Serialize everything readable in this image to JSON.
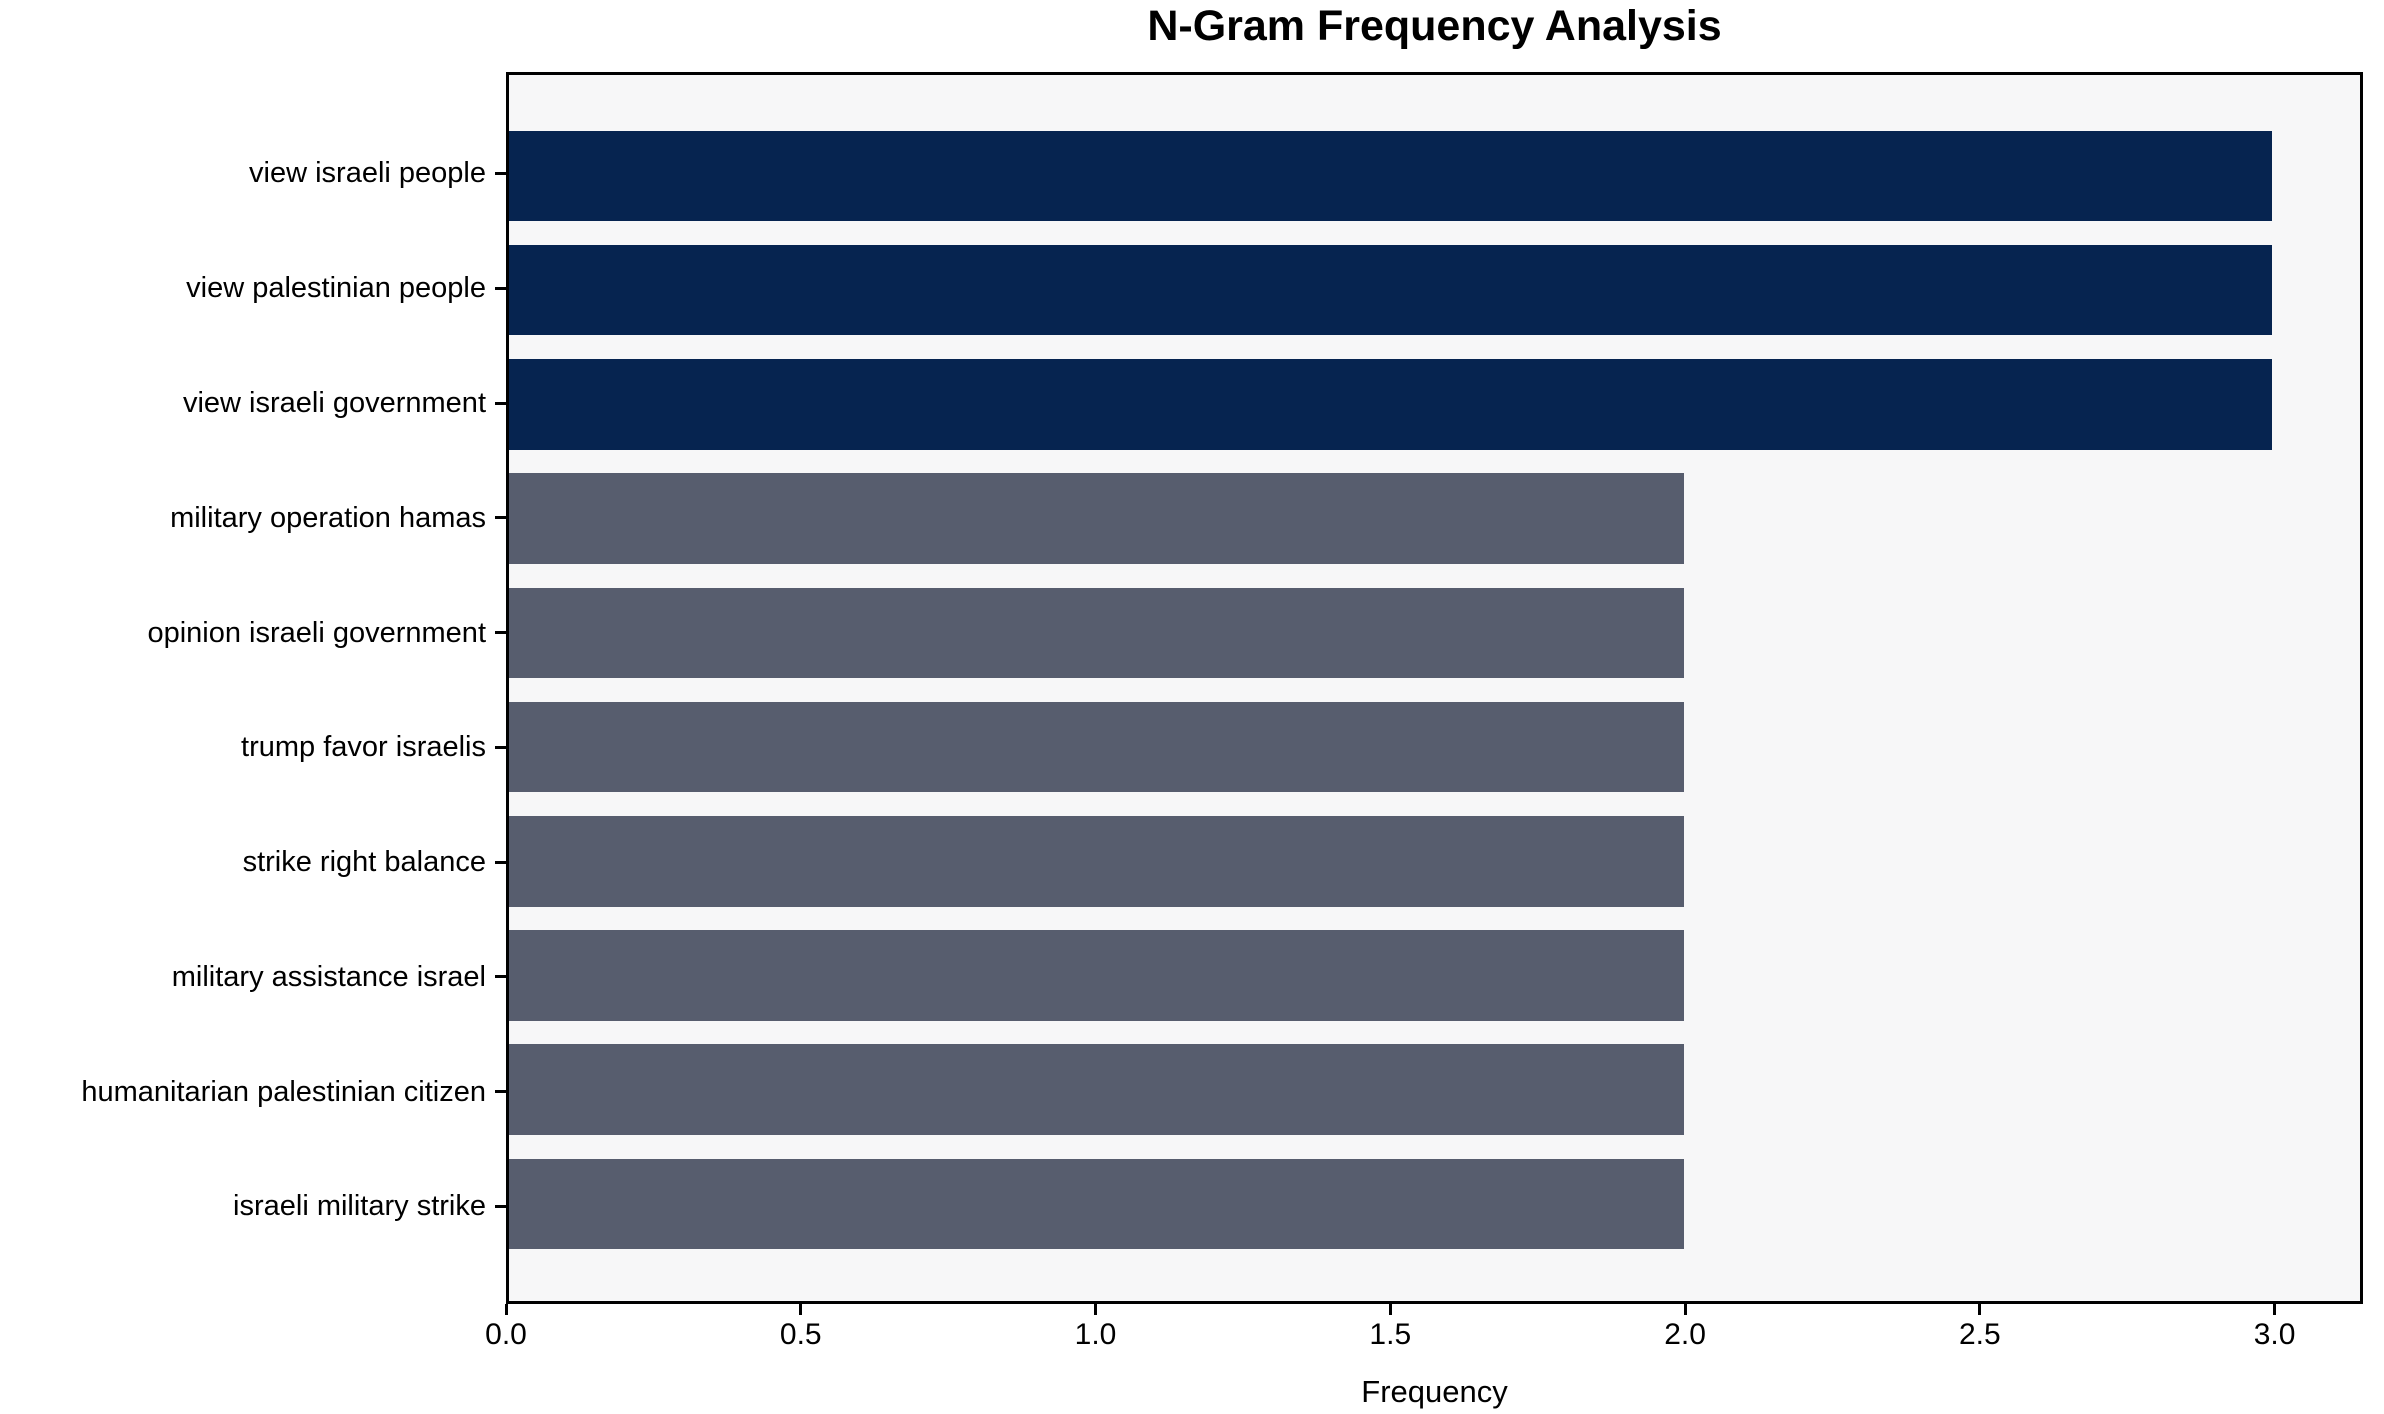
{
  "title": "N-Gram Frequency Analysis",
  "chart_data": {
    "type": "bar",
    "orientation": "horizontal",
    "title": "N-Gram Frequency Analysis",
    "xlabel": "Frequency",
    "ylabel": "",
    "categories": [
      "view israeli people",
      "view palestinian people",
      "view israeli government",
      "military operation hamas",
      "opinion israeli government",
      "trump favor israelis",
      "strike right balance",
      "military assistance israel",
      "humanitarian palestinian citizen",
      "israeli military strike"
    ],
    "values": [
      3,
      3,
      3,
      2,
      2,
      2,
      2,
      2,
      2,
      2
    ],
    "bar_colors": [
      "#062450",
      "#062450",
      "#062450",
      "#575D6E",
      "#575D6E",
      "#575D6E",
      "#575D6E",
      "#575D6E",
      "#575D6E",
      "#575D6E"
    ],
    "xlim": [
      0,
      3.15
    ],
    "xtick_labels": [
      "0.0",
      "0.5",
      "1.0",
      "1.5",
      "2.0",
      "2.5",
      "3.0"
    ],
    "xtick_values": [
      0,
      0.5,
      1.0,
      1.5,
      2.0,
      2.5,
      3.0
    ],
    "grid": false,
    "legend": null,
    "colors": {
      "plot_background": "#F7F7F8",
      "page_background": "#FFFFFF",
      "axis": "#000000",
      "bar_high": "#062450",
      "bar_low": "#575D6E"
    }
  }
}
